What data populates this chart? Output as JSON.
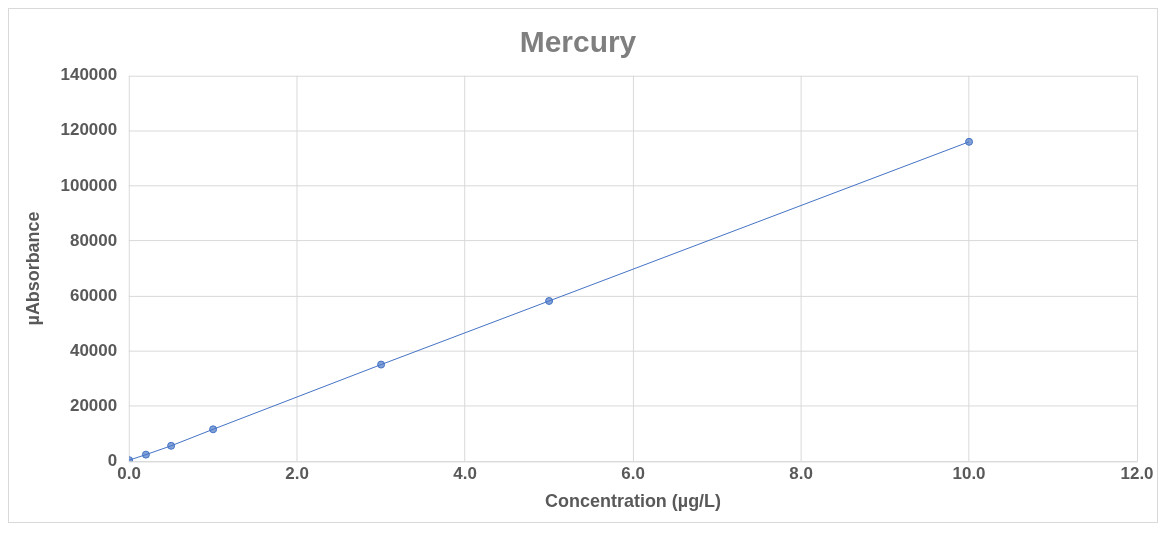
{
  "chart_data": {
    "type": "line",
    "title": "Mercury",
    "xlabel": "Concentration (µg/L)",
    "ylabel": "µAbsorbance",
    "x": [
      0,
      0.2,
      0.5,
      1,
      3,
      5,
      10
    ],
    "series": [
      {
        "color": "#4472c4",
        "values": [
          400,
          2400,
          5600,
          11600,
          35100,
          58200,
          116000
        ]
      }
    ],
    "xlim": [
      0,
      12
    ],
    "xticks": [
      {
        "value": 0,
        "label": "0.0"
      },
      {
        "value": 2,
        "label": "2.0"
      },
      {
        "value": 4,
        "label": "4.0"
      },
      {
        "value": 6,
        "label": "6.0"
      },
      {
        "value": 8,
        "label": "8.0"
      },
      {
        "value": 10,
        "label": "10.0"
      },
      {
        "value": 12,
        "label": "12.0"
      }
    ],
    "ylim": [
      0,
      140000
    ],
    "yticks": [
      0,
      20000,
      40000,
      60000,
      80000,
      100000,
      120000,
      140000
    ],
    "grid": true,
    "legend": false,
    "marker": "circle",
    "line_style": "solid"
  }
}
